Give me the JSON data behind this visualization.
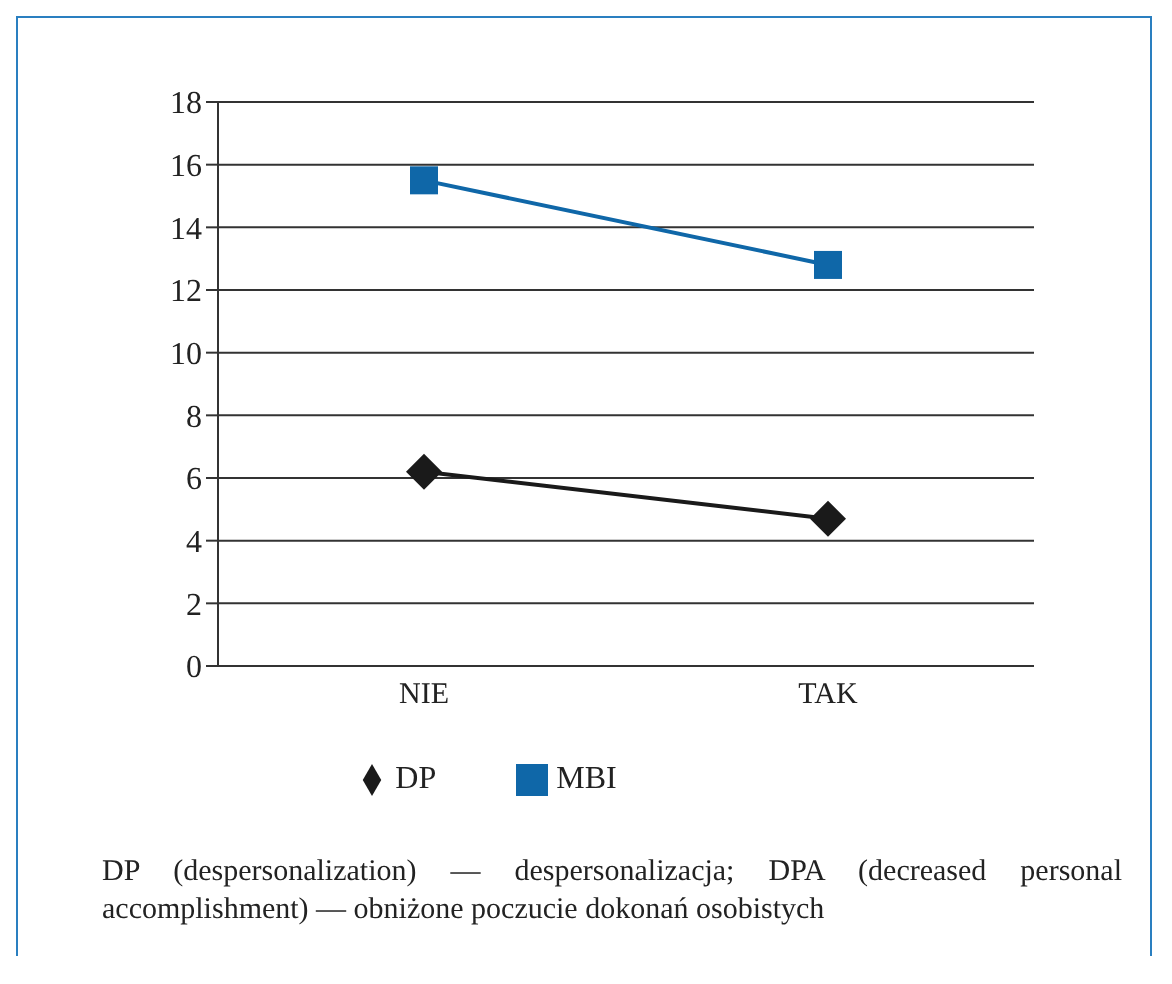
{
  "chart_data": {
    "type": "line",
    "categories": [
      "NIE",
      "TAK"
    ],
    "series": [
      {
        "name": "MBI",
        "color": "#0f67a8",
        "marker": "square",
        "values": [
          15.5,
          12.8
        ]
      },
      {
        "name": "DP",
        "color": "#1a1a1a",
        "marker": "diamond",
        "values": [
          6.2,
          4.7
        ]
      }
    ],
    "ylim": [
      0,
      18
    ],
    "yticks": [
      0,
      2,
      4,
      6,
      8,
      10,
      12,
      14,
      16,
      18
    ],
    "grid": "y",
    "legend": "bottom",
    "annotations": [
      "DP (despersonalization) — despersonalizacja; DPA (decreased personal accomplishment) — obniżone poczucie dokonań osobistych"
    ]
  }
}
